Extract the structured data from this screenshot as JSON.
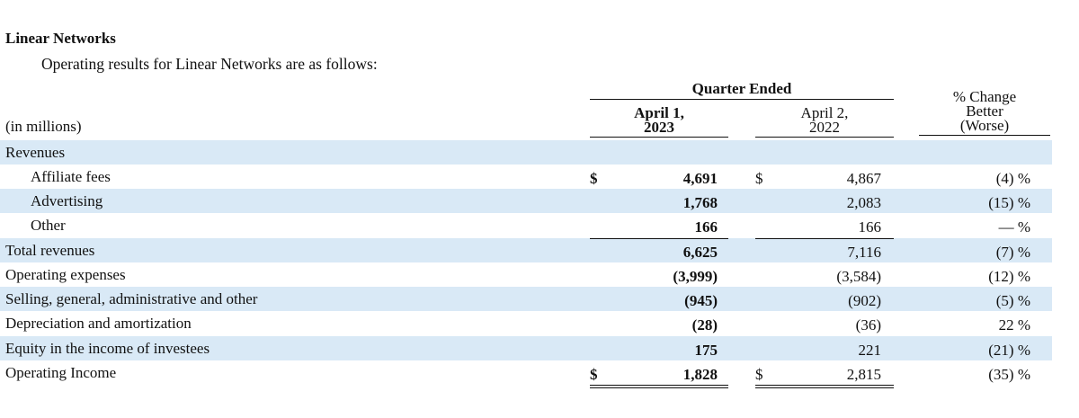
{
  "section_title": "Linear Networks",
  "intro_text": "Operating results for Linear Networks are as follows:",
  "header": {
    "group": "Quarter Ended",
    "col_a_line1": "April 1,",
    "col_a_line2": "2023",
    "col_b_line1": "April 2,",
    "col_b_line2": "2022",
    "col_c_line1": "% Change",
    "col_c_line2": "Better",
    "col_c_line3": "(Worse)",
    "units": "(in millions)"
  },
  "rows": [
    {
      "label": "Revenues",
      "a_dollar": "",
      "a": "",
      "b_dollar": "",
      "b": "",
      "change": ""
    },
    {
      "label": "Affiliate fees",
      "a_dollar": "$",
      "a": "4,691",
      "b_dollar": "$",
      "b": "4,867",
      "change": "(4) %"
    },
    {
      "label": "Advertising",
      "a_dollar": "",
      "a": "1,768",
      "b_dollar": "",
      "b": "2,083",
      "change": "(15) %"
    },
    {
      "label": "Other",
      "a_dollar": "",
      "a": "166",
      "b_dollar": "",
      "b": "166",
      "change": "— %"
    },
    {
      "label": "Total revenues",
      "a_dollar": "",
      "a": "6,625",
      "b_dollar": "",
      "b": "7,116",
      "change": "(7) %"
    },
    {
      "label": "Operating expenses",
      "a_dollar": "",
      "a": "(3,999)",
      "b_dollar": "",
      "b": "(3,584)",
      "change": "(12) %"
    },
    {
      "label": "Selling, general, administrative and other",
      "a_dollar": "",
      "a": "(945)",
      "b_dollar": "",
      "b": "(902)",
      "change": "(5) %"
    },
    {
      "label": "Depreciation and amortization",
      "a_dollar": "",
      "a": "(28)",
      "b_dollar": "",
      "b": "(36)",
      "change": "22 %"
    },
    {
      "label": "Equity in the income of investees",
      "a_dollar": "",
      "a": "175",
      "b_dollar": "",
      "b": "221",
      "change": "(21) %"
    },
    {
      "label": "Operating Income",
      "a_dollar": "$",
      "a": "1,828",
      "b_dollar": "$",
      "b": "2,815",
      "change": "(35) %"
    }
  ],
  "colors": {
    "row_shade": "#d9e9f6",
    "text": "#111111"
  }
}
